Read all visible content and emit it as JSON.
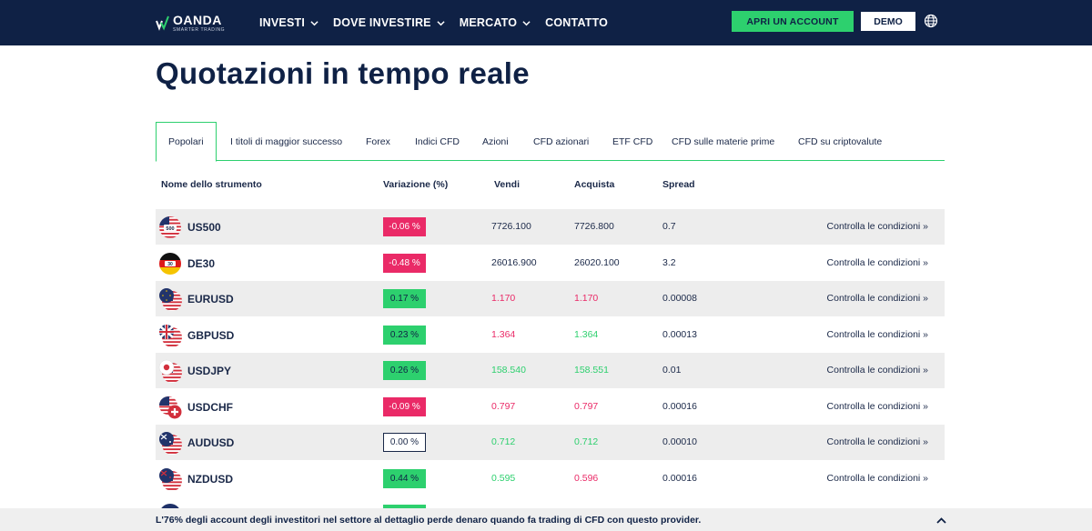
{
  "brand": {
    "name": "OANDA",
    "tagline": "SMARTER TRADING"
  },
  "nav": [
    {
      "label": "INVESTI",
      "dropdown": true
    },
    {
      "label": "DOVE INVESTIRE",
      "dropdown": true
    },
    {
      "label": "MERCATO",
      "dropdown": true
    },
    {
      "label": "CONTATTO",
      "dropdown": false
    }
  ],
  "header": {
    "open_account_label": "APRI UN ACCOUNT",
    "demo_label": "DEMO",
    "language_icon": "globe-icon"
  },
  "page_title": "Quotazioni in tempo reale",
  "tabs": [
    {
      "label": "Popolari",
      "active": true
    },
    {
      "label": "I titoli di maggior successo"
    },
    {
      "label": "Forex"
    },
    {
      "label": "Indici CFD"
    },
    {
      "label": "Azioni"
    },
    {
      "label": "CFD azionari"
    },
    {
      "label": "ETF CFD"
    },
    {
      "label": "CFD sulle materie prime"
    },
    {
      "label": "CFD su criptovalute"
    }
  ],
  "table": {
    "columns": [
      "Nome dello strumento",
      "Variazione (%)",
      "Vendi",
      "Acquista",
      "Spread"
    ],
    "link_label": "Controlla le condizioni »",
    "rows": [
      {
        "symbol": "US500",
        "change": "-0.06 %",
        "change_dir": "neg",
        "sell": "7726.100",
        "sell_color": "dark",
        "buy": "7726.800",
        "buy_color": "dark",
        "spread": "0.7",
        "flag": "us-500",
        "flag_text": "500"
      },
      {
        "symbol": "DE30",
        "change": "-0.48 %",
        "change_dir": "neg",
        "sell": "26016.900",
        "sell_color": "dark",
        "buy": "26020.100",
        "buy_color": "dark",
        "spread": "3.2",
        "flag": "de-30",
        "flag_text": "30"
      },
      {
        "symbol": "EURUSD",
        "change": "0.17 %",
        "change_dir": "pos",
        "sell": "1.170",
        "sell_color": "red",
        "buy": "1.170",
        "buy_color": "red",
        "spread": "0.00008",
        "flag": "eu-us"
      },
      {
        "symbol": "GBPUSD",
        "change": "0.23 %",
        "change_dir": "pos",
        "sell": "1.364",
        "sell_color": "red",
        "buy": "1.364",
        "buy_color": "green",
        "spread": "0.00013",
        "flag": "gb-us"
      },
      {
        "symbol": "USDJPY",
        "change": "0.26 %",
        "change_dir": "pos",
        "sell": "158.540",
        "sell_color": "green",
        "buy": "158.551",
        "buy_color": "green",
        "spread": "0.01",
        "flag": "us-jp"
      },
      {
        "symbol": "USDCHF",
        "change": "-0.09 %",
        "change_dir": "neg",
        "sell": "0.797",
        "sell_color": "red",
        "buy": "0.797",
        "buy_color": "red",
        "spread": "0.00016",
        "flag": "us-ch"
      },
      {
        "symbol": "AUDUSD",
        "change": "0.00 %",
        "change_dir": "flat",
        "sell": "0.712",
        "sell_color": "green",
        "buy": "0.712",
        "buy_color": "green",
        "spread": "0.00010",
        "flag": "au-us"
      },
      {
        "symbol": "NZDUSD",
        "change": "0.44 %",
        "change_dir": "pos",
        "sell": "0.595",
        "sell_color": "green",
        "buy": "0.596",
        "buy_color": "red",
        "spread": "0.00016",
        "flag": "nz-us"
      }
    ]
  },
  "colors": {
    "navy": "#0f2145",
    "green": "#2dd06e",
    "red": "#ea2a67",
    "row_alt": "#ededed"
  },
  "risk_notice": "L'76% degli account degli investitori nel settore al dettaglio perde denaro quando fa trading di CFD con questo provider."
}
